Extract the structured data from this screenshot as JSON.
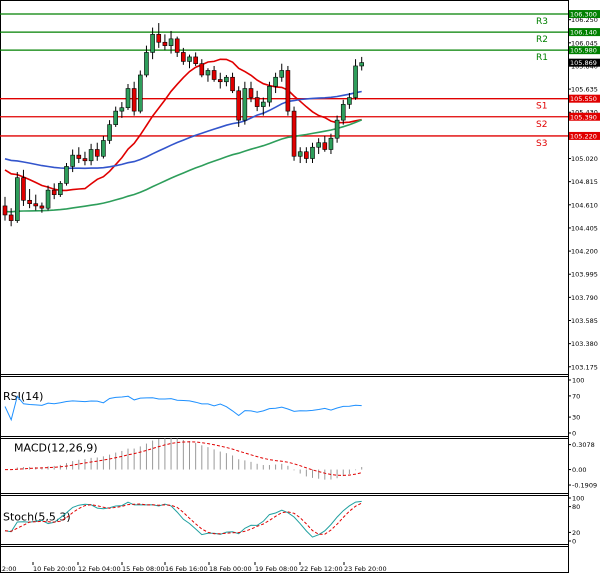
{
  "chart_data": {
    "type": "candlestick",
    "instrument": "",
    "main_panel": {
      "y_ticks": [
        "106.250",
        "106.045",
        "105.840",
        "105.635",
        "105.430",
        "105.225",
        "105.020",
        "104.815",
        "104.610",
        "104.405",
        "104.200",
        "103.995",
        "103.790",
        "103.585",
        "103.380",
        "103.175"
      ],
      "ylim": [
        103.12,
        106.38
      ],
      "current_price": "105.869",
      "levels": [
        {
          "name": "R3",
          "value": 106.3,
          "label": "106.300",
          "color": "#008000"
        },
        {
          "name": "R2",
          "value": 106.14,
          "label": "106.140",
          "color": "#008000"
        },
        {
          "name": "R1",
          "value": 105.98,
          "label": "105.980",
          "color": "#008000"
        },
        {
          "name": "S1",
          "value": 105.55,
          "label": "105.550",
          "color": "#e00000"
        },
        {
          "name": "S2",
          "value": 105.39,
          "label": "105.390",
          "color": "#e00000"
        },
        {
          "name": "S3",
          "value": 105.22,
          "label": "105.220",
          "color": "#e00000"
        }
      ],
      "candles": [
        [
          104.6,
          104.68,
          104.47,
          104.52
        ],
        [
          104.52,
          104.58,
          104.42,
          104.47
        ],
        [
          104.47,
          104.9,
          104.45,
          104.85
        ],
        [
          104.85,
          104.92,
          104.6,
          104.65
        ],
        [
          104.65,
          104.75,
          104.58,
          104.62
        ],
        [
          104.62,
          104.7,
          104.56,
          104.6
        ],
        [
          104.6,
          104.63,
          104.54,
          104.58
        ],
        [
          104.58,
          104.78,
          104.56,
          104.74
        ],
        [
          104.74,
          104.8,
          104.66,
          104.7
        ],
        [
          104.7,
          104.82,
          104.68,
          104.8
        ],
        [
          104.8,
          104.98,
          104.78,
          104.95
        ],
        [
          104.95,
          105.1,
          104.9,
          105.05
        ],
        [
          105.05,
          105.12,
          104.98,
          105.02
        ],
        [
          105.02,
          105.08,
          104.96,
          105.0
        ],
        [
          105.0,
          105.15,
          104.96,
          105.1
        ],
        [
          105.1,
          105.16,
          105.0,
          105.04
        ],
        [
          105.04,
          105.22,
          105.02,
          105.18
        ],
        [
          105.18,
          105.36,
          105.15,
          105.32
        ],
        [
          105.32,
          105.48,
          105.3,
          105.44
        ],
        [
          105.44,
          105.52,
          105.38,
          105.47
        ],
        [
          105.47,
          105.68,
          105.45,
          105.64
        ],
        [
          105.64,
          105.7,
          105.4,
          105.44
        ],
        [
          105.44,
          105.8,
          105.42,
          105.76
        ],
        [
          105.76,
          106.02,
          105.74,
          105.96
        ],
        [
          105.96,
          106.18,
          105.9,
          106.12
        ],
        [
          106.12,
          106.22,
          106.0,
          106.05
        ],
        [
          106.05,
          106.12,
          105.98,
          106.02
        ],
        [
          106.02,
          106.15,
          105.95,
          106.08
        ],
        [
          106.08,
          106.1,
          105.92,
          105.96
        ],
        [
          105.96,
          106.0,
          105.85,
          105.88
        ],
        [
          105.88,
          105.94,
          105.82,
          105.92
        ],
        [
          105.92,
          105.96,
          105.84,
          105.86
        ],
        [
          105.86,
          105.9,
          105.74,
          105.76
        ],
        [
          105.76,
          105.82,
          105.7,
          105.8
        ],
        [
          105.8,
          105.84,
          105.7,
          105.72
        ],
        [
          105.72,
          105.78,
          105.64,
          105.7
        ],
        [
          105.7,
          105.76,
          105.66,
          105.74
        ],
        [
          105.74,
          105.78,
          105.6,
          105.62
        ],
        [
          105.62,
          105.66,
          105.3,
          105.36
        ],
        [
          105.36,
          105.7,
          105.32,
          105.64
        ],
        [
          105.64,
          105.7,
          105.52,
          105.56
        ],
        [
          105.56,
          105.62,
          105.44,
          105.48
        ],
        [
          105.48,
          105.56,
          105.4,
          105.52
        ],
        [
          105.52,
          105.7,
          105.48,
          105.66
        ],
        [
          105.66,
          105.78,
          105.6,
          105.74
        ],
        [
          105.74,
          105.86,
          105.7,
          105.8
        ],
        [
          105.8,
          105.84,
          105.4,
          105.44
        ],
        [
          105.44,
          105.48,
          105.0,
          105.04
        ],
        [
          105.04,
          105.12,
          104.98,
          105.08
        ],
        [
          105.08,
          105.12,
          104.98,
          105.02
        ],
        [
          105.02,
          105.16,
          104.98,
          105.12
        ],
        [
          105.12,
          105.2,
          105.06,
          105.16
        ],
        [
          105.16,
          105.22,
          105.08,
          105.1
        ],
        [
          105.1,
          105.24,
          105.06,
          105.2
        ],
        [
          105.2,
          105.4,
          105.16,
          105.36
        ],
        [
          105.36,
          105.54,
          105.32,
          105.5
        ],
        [
          105.5,
          105.6,
          105.46,
          105.56
        ],
        [
          105.56,
          105.9,
          105.54,
          105.84
        ],
        [
          105.84,
          105.92,
          105.8,
          105.87
        ]
      ],
      "indicators": [
        {
          "name": "",
          "color": "#e00000"
        },
        {
          "name": "",
          "color": "#3355cc"
        },
        {
          "name": "",
          "color": "#2e9e5b"
        }
      ]
    },
    "rsi_panel": {
      "label": "RSI(14)",
      "y_ticks": [
        "100",
        "70",
        "30",
        "0"
      ],
      "ylim": [
        0,
        100
      ],
      "color": "#1e90ff"
    },
    "macd_panel": {
      "label": "MACD(12,26,9)",
      "y_ticks": [
        "0.3078",
        "0.00",
        "-0.1909"
      ],
      "ylim": [
        -0.24,
        0.34
      ],
      "signal_color": "#e00000"
    },
    "stoch_panel": {
      "label": "Stoch(5,5,3)",
      "y_ticks": [
        "100",
        "80",
        "20",
        "0"
      ],
      "ylim": [
        0,
        100
      ],
      "k_color": "#20a0a0",
      "d_color": "#e00000"
    },
    "x_ticks": [
      "9 Feb 12:00",
      "10 Feb 20:00",
      "12 Feb 04:00",
      "15 Feb 08:00",
      "16 Feb 16:00",
      "18 Feb 00:00",
      "19 Feb 08:00",
      "22 Feb 12:00",
      "23 Feb 20:00"
    ],
    "grid": false,
    "colors": {
      "bull": "#2e9e5b",
      "bear": "#e00000",
      "tag_bg": "#000000"
    }
  }
}
